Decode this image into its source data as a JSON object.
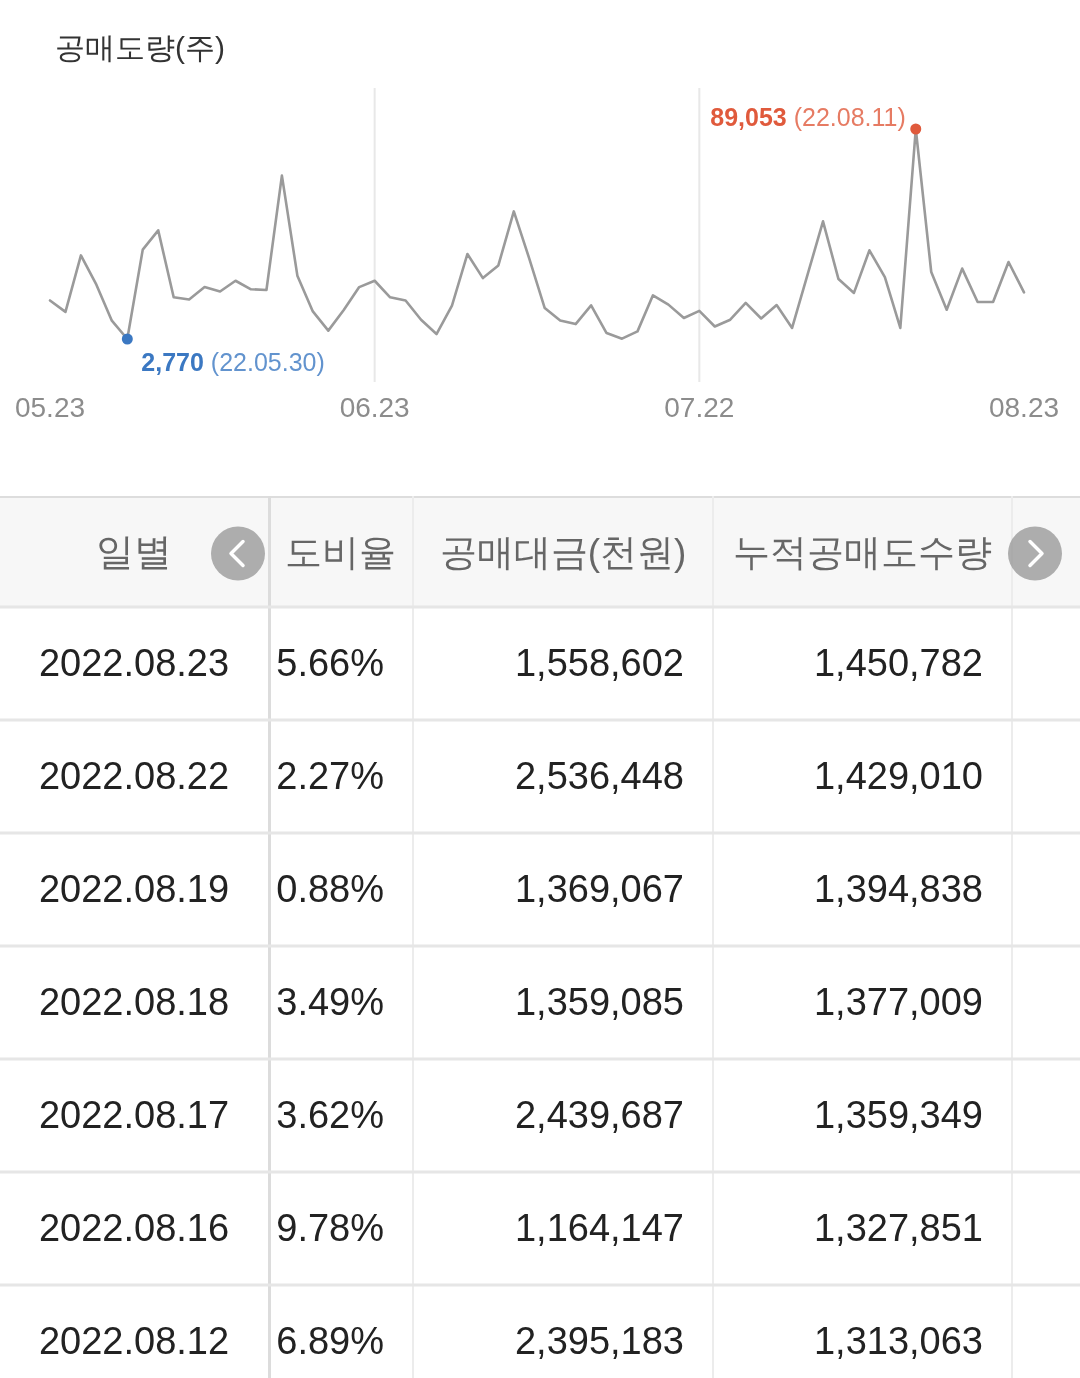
{
  "chart_data": [
    {
      "type": "line",
      "title": "공매도량(주)",
      "grid": "x",
      "categories": [
        "05.23",
        null,
        null,
        null,
        null,
        null,
        null,
        null,
        null,
        null,
        null,
        null,
        null,
        null,
        null,
        null,
        null,
        null,
        null,
        null,
        null,
        "06.23",
        null,
        null,
        null,
        null,
        null,
        null,
        null,
        null,
        null,
        null,
        null,
        null,
        null,
        null,
        null,
        null,
        null,
        null,
        null,
        null,
        "07.22",
        null,
        null,
        null,
        null,
        null,
        null,
        null,
        null,
        null,
        null,
        null,
        null,
        null,
        null,
        null,
        null,
        null,
        null,
        null,
        null,
        "08.23"
      ],
      "series": [
        {
          "color": "#9a9a9a",
          "values": [
            18600,
            13900,
            37100,
            25100,
            10300,
            2770,
            39500,
            47400,
            19900,
            19000,
            24100,
            22300,
            26700,
            23200,
            22900,
            69900,
            28800,
            14100,
            6200,
            14700,
            24100,
            26700,
            19900,
            18600,
            10700,
            4800,
            16500,
            37700,
            27800,
            33000,
            55200,
            35800,
            15500,
            10400,
            8900,
            16600,
            5200,
            2900,
            5900,
            20700,
            16900,
            11400,
            14300,
            7900,
            10700,
            17600,
            11200,
            16700,
            7300,
            29200,
            51100,
            27400,
            21700,
            39200,
            28200,
            7300,
            89053,
            30300,
            14800,
            31700,
            18000,
            18000,
            34400,
            21900
          ],
          "colors": [
            null,
            null,
            null,
            null,
            null,
            "#3b78c2",
            null,
            null,
            null,
            null,
            null,
            null,
            null,
            null,
            null,
            null,
            null,
            null,
            null,
            null,
            null,
            null,
            null,
            null,
            null,
            null,
            null,
            null,
            null,
            null,
            null,
            null,
            null,
            null,
            null,
            null,
            null,
            null,
            null,
            null,
            null,
            null,
            null,
            null,
            null,
            null,
            null,
            null,
            null,
            null,
            null,
            null,
            null,
            null,
            null,
            null,
            "#e05a3c",
            null,
            null,
            null,
            null,
            null,
            null,
            null
          ],
          "value_labels": [
            null,
            null,
            null,
            null,
            null,
            "2,770 (22.05.30)",
            null,
            null,
            null,
            null,
            null,
            null,
            null,
            null,
            null,
            null,
            null,
            null,
            null,
            null,
            null,
            null,
            null,
            null,
            null,
            null,
            null,
            null,
            null,
            null,
            null,
            null,
            null,
            null,
            null,
            null,
            null,
            null,
            null,
            null,
            null,
            null,
            null,
            null,
            null,
            null,
            null,
            null,
            null,
            null,
            null,
            null,
            null,
            null,
            null,
            null,
            "89,053 (22.08.11)",
            null,
            null,
            null,
            null,
            null,
            null,
            null
          ]
        }
      ]
    },
    {
      "type": "other",
      "ylabel": "일별",
      "categories": [
        "도비율",
        "공매대금(천원)",
        "누적공매도수량"
      ],
      "y_categories": [
        "2022.08.23",
        "2022.08.22",
        "2022.08.19",
        "2022.08.18",
        "2022.08.17",
        "2022.08.16",
        "2022.08.12"
      ],
      "cell_labels": [
        [
          "5.66%",
          "1,558,602",
          "1,450,782"
        ],
        [
          "2.27%",
          "2,536,448",
          "1,429,010"
        ],
        [
          "0.88%",
          "1,369,067",
          "1,394,838"
        ],
        [
          "3.49%",
          "1,359,085",
          "1,377,009"
        ],
        [
          "3.62%",
          "2,439,687",
          "1,359,349"
        ],
        [
          "9.78%",
          "1,164,147",
          "1,327,851"
        ],
        [
          "6.89%",
          "2,395,183",
          "1,313,063"
        ]
      ]
    }
  ]
}
